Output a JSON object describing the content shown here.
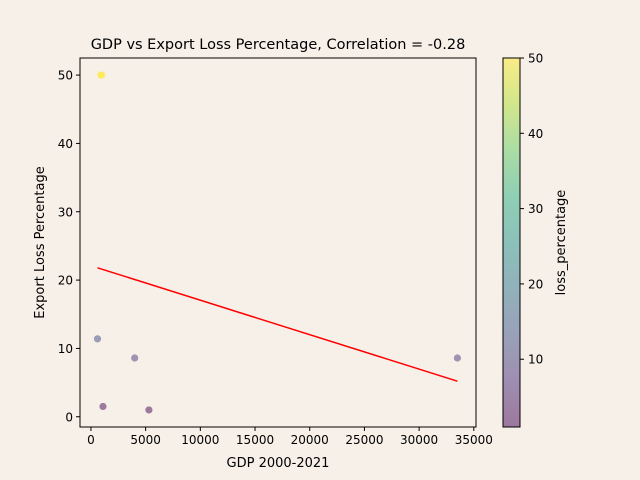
{
  "chart_data": {
    "type": "scatter",
    "title": "GDP vs Export Loss Percentage, Correlation = -0.28",
    "xlabel": "GDP 2000-2021",
    "ylabel": "Export Loss Percentage",
    "xlim": [
      -1000,
      35200
    ],
    "ylim": [
      -1.5,
      52.5
    ],
    "x_ticks": [
      0,
      5000,
      10000,
      15000,
      20000,
      25000,
      30000,
      35000
    ],
    "y_ticks": [
      0,
      10,
      20,
      30,
      40,
      50
    ],
    "grid": false,
    "points": [
      {
        "x": 900,
        "y": 50.0
      },
      {
        "x": 1000,
        "y": 50.0
      },
      {
        "x": 600,
        "y": 11.4
      },
      {
        "x": 4000,
        "y": 8.6
      },
      {
        "x": 33500,
        "y": 8.6
      },
      {
        "x": 1100,
        "y": 1.5
      },
      {
        "x": 5300,
        "y": 1.0
      }
    ],
    "trendline": {
      "x": [
        600,
        33500
      ],
      "y": [
        21.8,
        5.2
      ],
      "color": "#ff0000"
    },
    "colorbar": {
      "label": "loss_percentage",
      "range": [
        1.0,
        50.0
      ],
      "ticks": [
        10,
        20,
        30,
        40,
        50
      ],
      "colormap": "viridis",
      "alpha": 0.5
    }
  }
}
